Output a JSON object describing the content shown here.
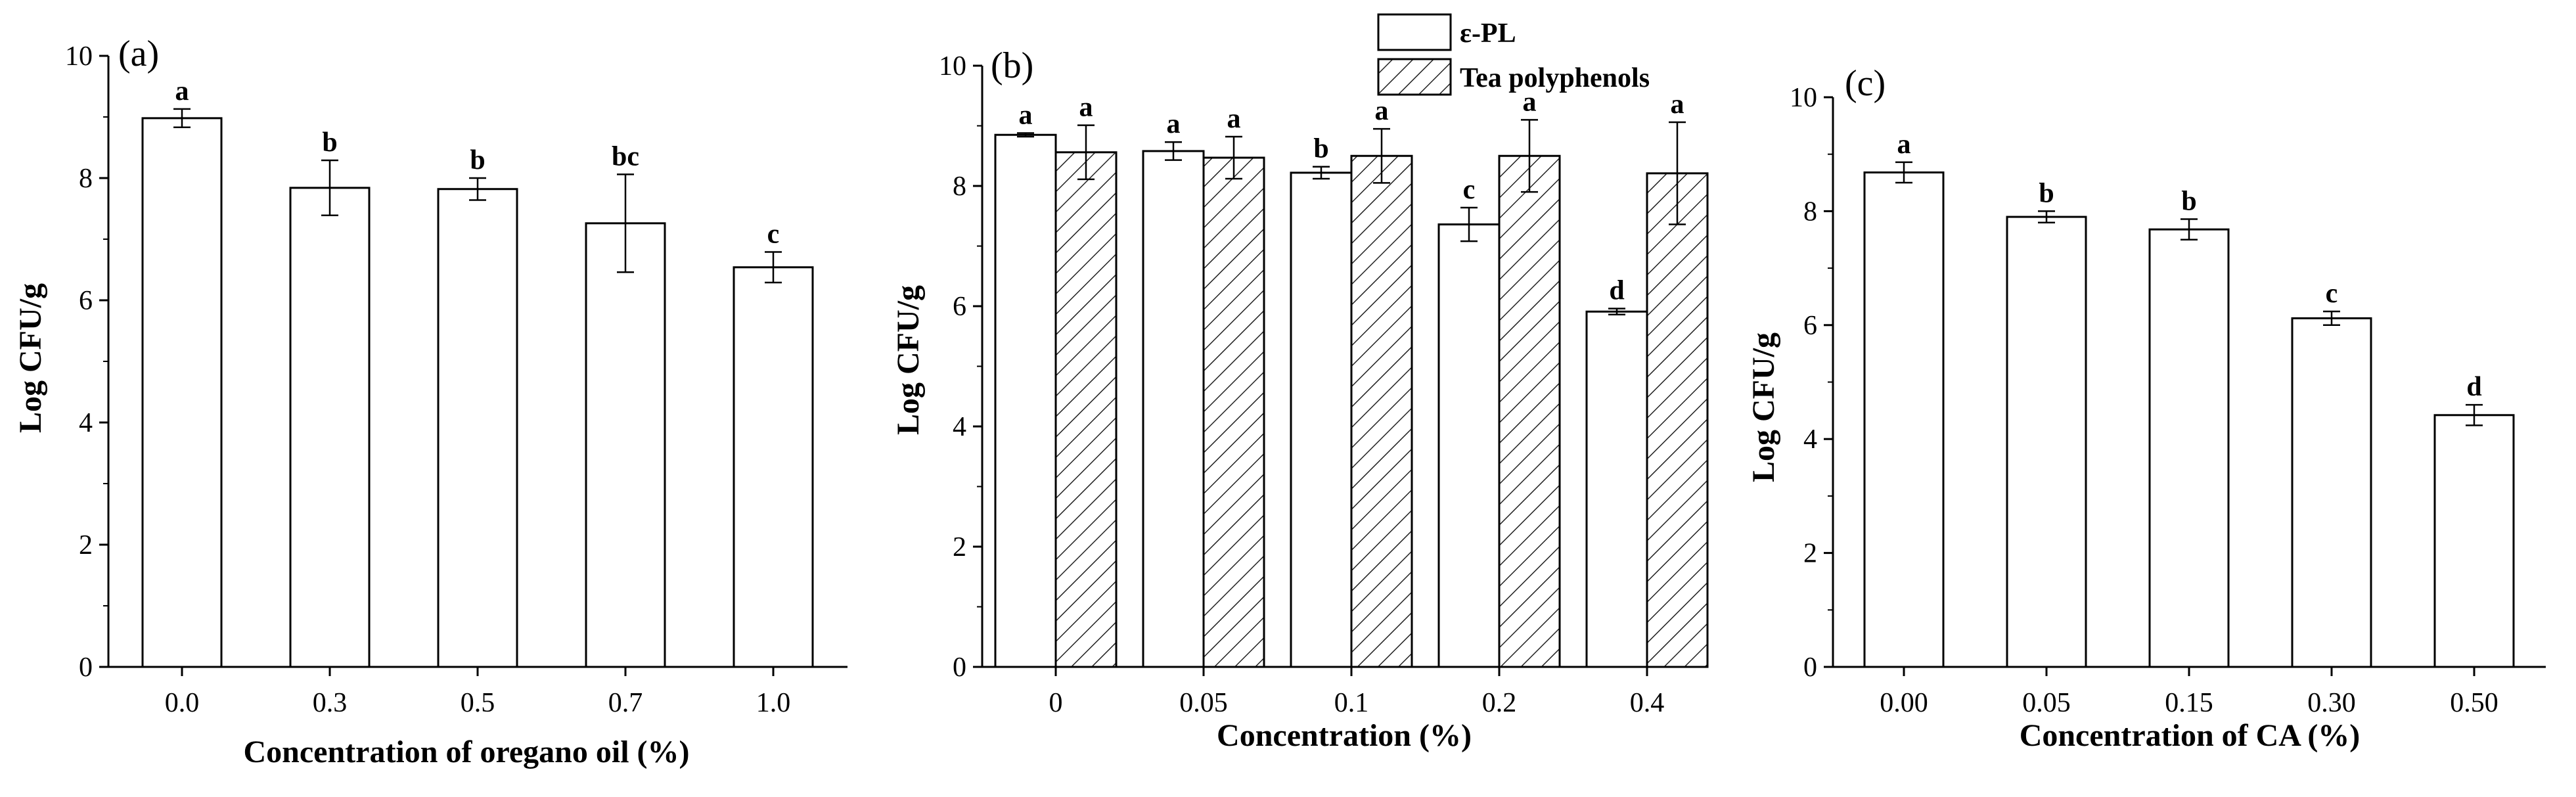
{
  "chart_data": [
    {
      "type": "bar",
      "panel": "(a)",
      "xlabel": "Concentration of oregano oil (%)",
      "ylabel": "Log CFU/g",
      "ylim": [
        0,
        10
      ],
      "yticks": [
        "0",
        "2",
        "4",
        "6",
        "8",
        "10"
      ],
      "categories": [
        "0.0",
        "0.3",
        "0.5",
        "0.7",
        "1.0"
      ],
      "series": [
        {
          "name": "",
          "pattern": "open",
          "values": [
            8.98,
            7.84,
            7.82,
            7.26,
            6.54
          ],
          "errors": [
            0.15,
            0.45,
            0.18,
            0.8,
            0.25
          ],
          "letters": [
            "a",
            "b",
            "b",
            "bc",
            "c"
          ]
        }
      ]
    },
    {
      "type": "bar",
      "panel": "(b)",
      "xlabel": "Concentration (%)",
      "ylabel": "Log CFU/g",
      "ylim": [
        0,
        10
      ],
      "yticks": [
        "0",
        "2",
        "4",
        "6",
        "8",
        "10"
      ],
      "categories": [
        "0",
        "0.05",
        "0.1",
        "0.2",
        "0.4"
      ],
      "legend": [
        "ε-PL",
        "Tea polyphenols"
      ],
      "series": [
        {
          "name": "ε-PL",
          "pattern": "open",
          "values": [
            8.85,
            8.58,
            8.22,
            7.36,
            5.91
          ],
          "errors": [
            0.03,
            0.15,
            0.1,
            0.28,
            0.05
          ],
          "letters": [
            "a",
            "a",
            "b",
            "c",
            "d"
          ]
        },
        {
          "name": "Tea polyphenols",
          "pattern": "hatched",
          "values": [
            8.56,
            8.47,
            8.5,
            8.5,
            8.21
          ],
          "errors": [
            0.45,
            0.35,
            0.45,
            0.6,
            0.85
          ],
          "letters": [
            "a",
            "a",
            "a",
            "a",
            "a"
          ]
        }
      ]
    },
    {
      "type": "bar",
      "panel": "(c)",
      "xlabel": "Concentration of CA (%)",
      "ylabel": "Log CFU/g",
      "ylim": [
        0,
        10
      ],
      "yticks": [
        "0",
        "2",
        "4",
        "6",
        "8",
        "10"
      ],
      "categories": [
        "0.00",
        "0.05",
        "0.15",
        "0.30",
        "0.50"
      ],
      "series": [
        {
          "name": "",
          "pattern": "open",
          "values": [
            8.68,
            7.9,
            7.68,
            6.12,
            4.42
          ],
          "errors": [
            0.18,
            0.1,
            0.18,
            0.12,
            0.18
          ],
          "letters": [
            "a",
            "b",
            "b",
            "c",
            "d"
          ]
        }
      ]
    }
  ]
}
